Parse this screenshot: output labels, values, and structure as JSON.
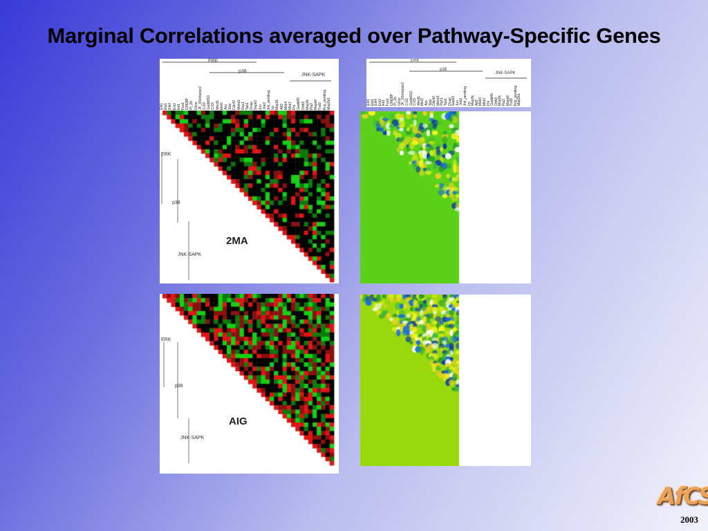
{
  "slide": {
    "title": "Marginal Correlations averaged over Pathway-Specific Genes",
    "year": "2003",
    "logo_text": "AfCS"
  },
  "header": {
    "groups": [
      "ERK",
      "p38",
      "JNK-SAPK"
    ],
    "genes": [
      "Elk1",
      "Ets1",
      "Elk4",
      "Erk2",
      "Ikk1",
      "Fos1",
      "CREBP",
      "Pl_2b",
      "Gfcsr",
      "JF_3Srkfactor2",
      "Cr16",
      "Gadd153",
      "Cr15",
      "Mect1",
      "Mef2",
      "Arp",
      "Stat",
      "Cdc42",
      "Mekk1",
      "Rac1",
      "Tab1",
      "Dusp",
      "Sapk3",
      "Jun",
      "Jnk3",
      "Jnk_pending",
      "Irp",
      "Map3k",
      "Atf2",
      "Mkk4",
      "Mkk7",
      "Fhl",
      "Gadd45",
      "Ddit3",
      "Map2k",
      "Pla2",
      "Mapk8",
      "Traf2",
      "Rcp_pending",
      "Map3k1"
    ]
  },
  "panels": [
    {
      "id": "2MA",
      "label": "2MA",
      "side_labels": [
        "ERK",
        "p38",
        "JNK-SAPK"
      ]
    },
    {
      "id": "AIG",
      "label": "AIG",
      "side_labels": [
        "ERK",
        "p38",
        "JNK-SAPK"
      ]
    }
  ],
  "colors": {
    "background_start": "#3a3ad8",
    "background_end": "#f2f2fb",
    "heat_positive": "#e01414",
    "heat_negative": "#14d014",
    "heat_zero": "#000000",
    "surface_base_top": "#5cd11a",
    "surface_base_bottom": "#98d80c"
  }
}
